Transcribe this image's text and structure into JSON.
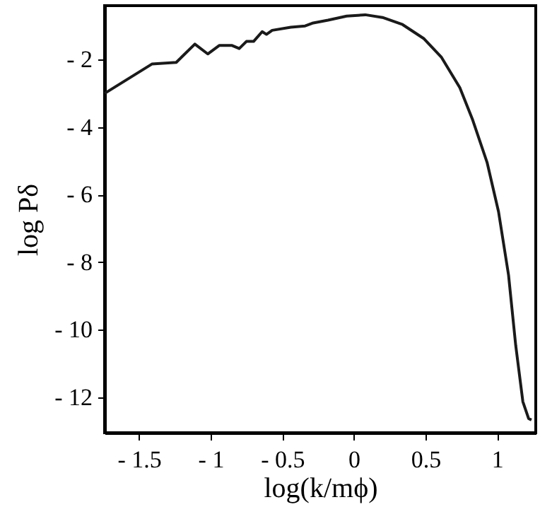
{
  "chart_data": {
    "type": "line",
    "xlabel": "log(k/mϕ)",
    "ylabel": "log Pδ",
    "x": [
      -1.74,
      -1.41,
      -1.24,
      -1.11,
      -1.02,
      -0.94,
      -0.85,
      -0.8,
      -0.75,
      -0.7,
      -0.64,
      -0.61,
      -0.57,
      -0.44,
      -0.34,
      -0.29,
      -0.18,
      -0.05,
      0.08,
      0.2,
      0.34,
      0.49,
      0.61,
      0.74,
      0.83,
      0.93,
      1.01,
      1.08,
      1.13,
      1.18,
      1.22,
      1.24
    ],
    "series": [
      {
        "color": "#1a1a1a",
        "values": [
          -3.0,
          -2.13,
          -2.08,
          -1.54,
          -1.83,
          -1.58,
          -1.58,
          -1.67,
          -1.46,
          -1.46,
          -1.17,
          -1.25,
          -1.13,
          -1.04,
          -1.0,
          -0.92,
          -0.83,
          -0.71,
          -0.67,
          -0.75,
          -0.96,
          -1.38,
          -1.92,
          -2.83,
          -3.79,
          -5.04,
          -6.5,
          -8.38,
          -10.46,
          -12.13,
          -12.63,
          -12.67
        ]
      }
    ],
    "xlim": [
      -1.74,
      1.27
    ],
    "ylim": [
      -13.05,
      -0.4
    ],
    "xticks": [
      {
        "value": -1.5,
        "label": "- 1.5"
      },
      {
        "value": -1,
        "label": "- 1"
      },
      {
        "value": -0.5,
        "label": "- 0.5"
      },
      0,
      0.5,
      1
    ],
    "yticks": [
      {
        "value": -12,
        "label": "- 12"
      },
      {
        "value": -10,
        "label": "- 10"
      },
      {
        "value": -8,
        "label": "- 8"
      },
      {
        "value": -6,
        "label": "- 6"
      },
      {
        "value": -4,
        "label": "- 4"
      },
      {
        "value": -2,
        "label": "- 2"
      }
    ],
    "grid": false,
    "marker": "none",
    "line_style": "solid"
  }
}
